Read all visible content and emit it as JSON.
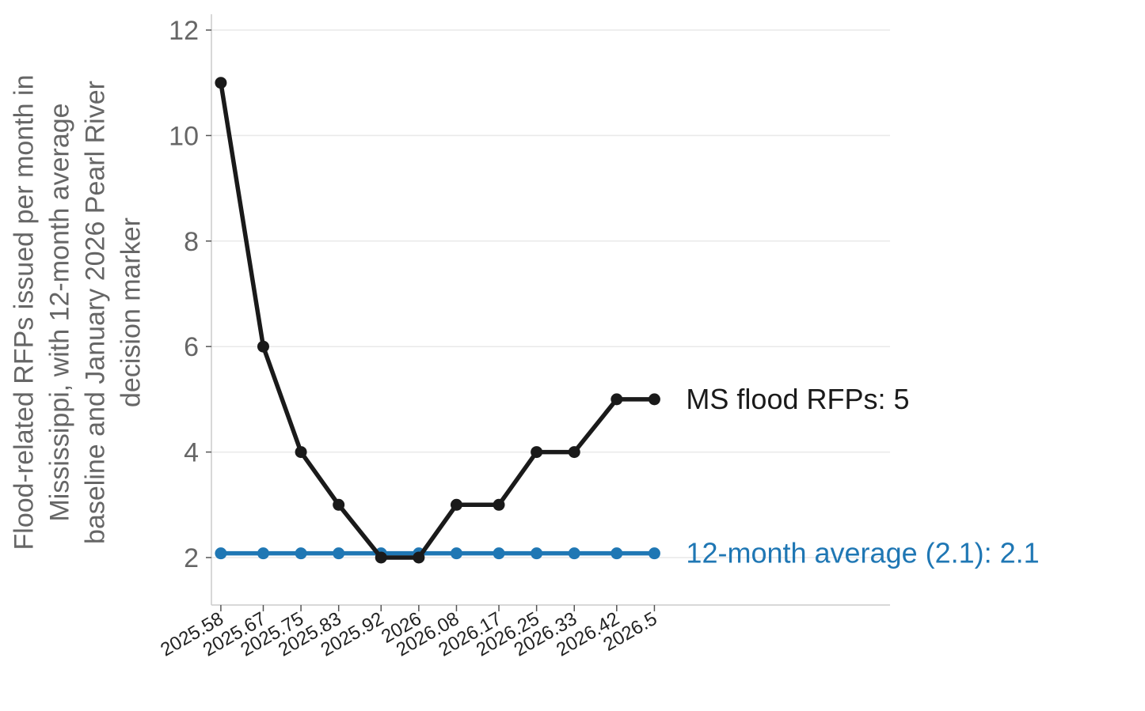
{
  "chart_data": {
    "type": "line",
    "title": "",
    "xlabel": "",
    "ylabel": "Flood-related RFPs issued per month in Mississippi, with 12-month average baseline and January 2026 Pearl River decision marker",
    "ylabel_lines": [
      "Flood-related RFPs issued per month in",
      "Mississippi, with 12-month average",
      "baseline and January 2026 Pearl River",
      "decision marker"
    ],
    "x": [
      2025.58,
      2025.67,
      2025.75,
      2025.83,
      2025.92,
      2026,
      2026.08,
      2026.17,
      2026.25,
      2026.33,
      2026.42,
      2026.5
    ],
    "x_tick_labels": [
      "2025.58",
      "2025.67",
      "2025.75",
      "2025.83",
      "2025.92",
      "2026",
      "2026.08",
      "2026.17",
      "2026.25",
      "2026.33",
      "2026.42",
      "2026.5"
    ],
    "xlim": [
      2025.56,
      2027.0
    ],
    "ylim": [
      1.1,
      12.3
    ],
    "y_ticks": [
      2,
      4,
      6,
      8,
      10,
      12
    ],
    "grid": "horizontal",
    "legend": "none (direct end labels)",
    "series": [
      {
        "values": [
          11,
          6,
          4,
          3,
          2,
          2,
          3,
          3,
          4,
          4,
          5,
          5
        ],
        "color": "#1a1a1a",
        "end_label": "MS flood RFPs: 5"
      },
      {
        "values": [
          2.08,
          2.08,
          2.08,
          2.08,
          2.08,
          2.08,
          2.08,
          2.08,
          2.08,
          2.08,
          2.08,
          2.08
        ],
        "color": "#1f77b4",
        "end_label": "12-month average (2.1): 2.1"
      }
    ]
  }
}
